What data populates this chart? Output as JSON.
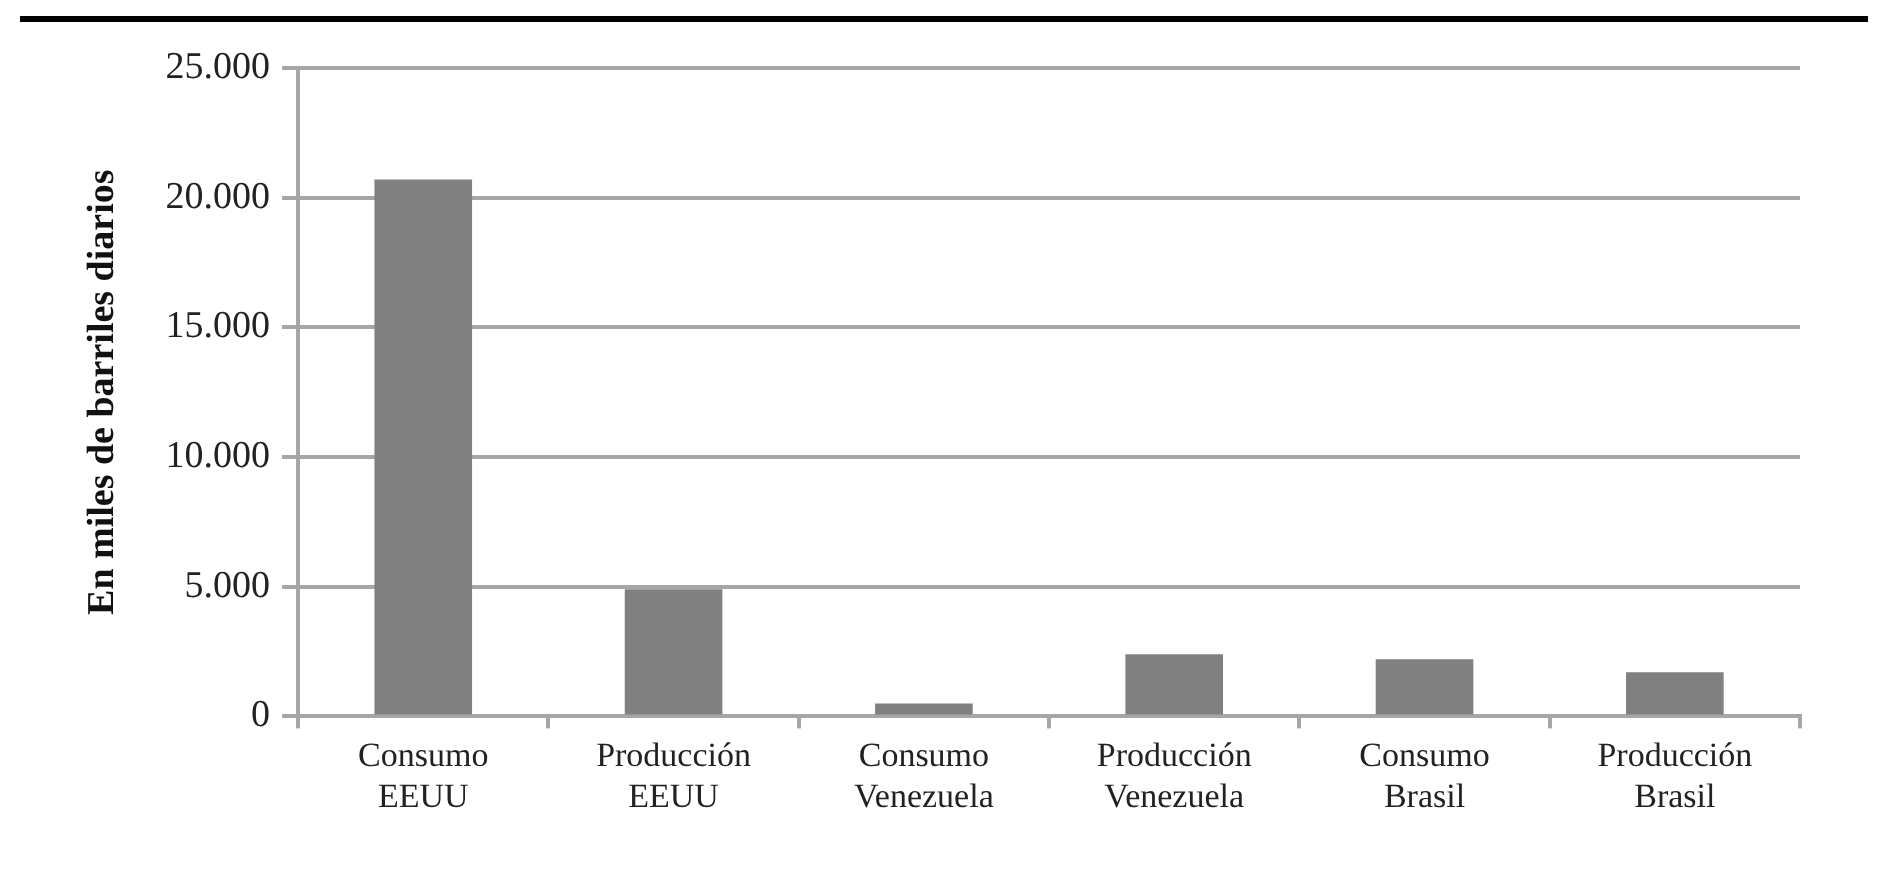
{
  "chart_data": {
    "type": "bar",
    "ylabel": "En miles de barriles diarios",
    "categories": [
      "Consumo EEUU",
      "Producción EEUU",
      "Consumo Venezuela",
      "Producción Venezuela",
      "Consumo Brasil",
      "Producción Brasil"
    ],
    "values": [
      20700,
      4900,
      500,
      2400,
      2200,
      1700
    ],
    "color": "#808080",
    "ylim": [
      0,
      25000
    ],
    "yticks": [
      {
        "value": 0,
        "label": "0"
      },
      {
        "value": 5000,
        "label": "5.000"
      },
      {
        "value": 10000,
        "label": "10.000"
      },
      {
        "value": 15000,
        "label": "15.000"
      },
      {
        "value": 20000,
        "label": "20.000"
      },
      {
        "value": 25000,
        "label": "25.000"
      }
    ],
    "grid": "y"
  }
}
